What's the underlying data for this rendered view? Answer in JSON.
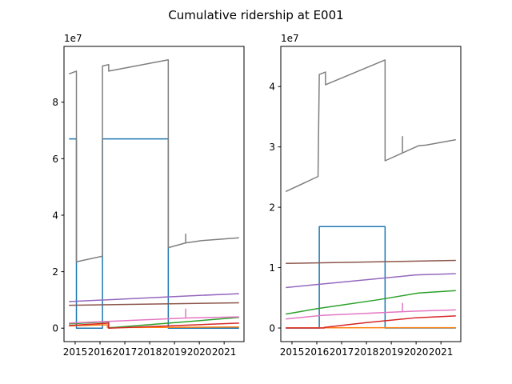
{
  "chart_data": {
    "type": "line",
    "title": "Cumulative ridership at E001",
    "colors": [
      "#1f77b4",
      "#ff7f0e",
      "#2ca02c",
      "#d62728",
      "#9467bd",
      "#8c564b",
      "#e377c2",
      "#7f7f7f"
    ],
    "panels": [
      {
        "xlim": [
          2014.55,
          2021.8
        ],
        "ylim": [
          -4750000,
          99750000
        ],
        "y_offset_label": "1e7",
        "xticks": [
          2015,
          2016,
          2017,
          2018,
          2019,
          2020,
          2021
        ],
        "xtick_labels": [
          "2015",
          "2016",
          "2017",
          "2018",
          "2019",
          "2020",
          "2021"
        ],
        "yticks": [
          0,
          20000000,
          40000000,
          60000000,
          80000000
        ],
        "ytick_labels": [
          "0",
          "2",
          "4",
          "6",
          "8"
        ],
        "series": [
          {
            "values": [
              [
                2014.75,
                67000000
              ],
              [
                2015.05,
                67000000
              ],
              [
                2015.05,
                0
              ],
              [
                2016.1,
                0
              ],
              [
                2016.1,
                67000000
              ],
              [
                2018.75,
                67000000
              ],
              [
                2018.75,
                0
              ],
              [
                2021.6,
                0
              ]
            ]
          },
          {
            "values": [
              [
                2014.75,
                800000
              ],
              [
                2016.3,
                1200000
              ],
              [
                2016.3,
                200000
              ],
              [
                2021.6,
                400000
              ]
            ]
          },
          {
            "values": [
              [
                2014.75,
                1500000
              ],
              [
                2016.35,
                2300000
              ],
              [
                2016.35,
                100000
              ],
              [
                2021.6,
                3800000
              ]
            ]
          },
          {
            "values": [
              [
                2014.75,
                900000
              ],
              [
                2016.35,
                1800000
              ],
              [
                2016.35,
                0
              ],
              [
                2021.6,
                1800000
              ]
            ]
          },
          {
            "values": [
              [
                2014.75,
                9400000
              ],
              [
                2020.0,
                11600000
              ],
              [
                2021.6,
                12200000
              ]
            ]
          },
          {
            "values": [
              [
                2014.75,
                8100000
              ],
              [
                2021.6,
                9000000
              ]
            ]
          },
          {
            "values": [
              [
                2014.75,
                1800000
              ],
              [
                2019.45,
                3600000
              ],
              [
                2019.45,
                6800000
              ],
              [
                2019.45,
                3600000
              ],
              [
                2021.6,
                4000000
              ]
            ]
          },
          {
            "values": [
              [
                2014.75,
                90000000
              ],
              [
                2015.05,
                91000000
              ],
              [
                2015.05,
                23500000
              ],
              [
                2016.1,
                25500000
              ],
              [
                2016.1,
                92800000
              ],
              [
                2016.35,
                93300000
              ],
              [
                2016.35,
                91000000
              ],
              [
                2018.75,
                95000000
              ],
              [
                2018.75,
                28500000
              ],
              [
                2019.45,
                30200000
              ],
              [
                2019.45,
                33300000
              ],
              [
                2019.45,
                30200000
              ],
              [
                2020.1,
                31000000
              ],
              [
                2021.6,
                32000000
              ]
            ]
          }
        ]
      },
      {
        "xlim": [
          2014.55,
          2021.8
        ],
        "ylim": [
          -2250000,
          46650000
        ],
        "y_offset_label": "1e7",
        "xticks": [
          2015,
          2016,
          2017,
          2018,
          2019,
          2020,
          2021
        ],
        "xtick_labels": [
          "2015",
          "2016",
          "2017",
          "2018",
          "2019",
          "2020",
          "2021"
        ],
        "yticks": [
          0,
          10000000,
          20000000,
          30000000,
          40000000
        ],
        "ytick_labels": [
          "0",
          "1",
          "2",
          "3",
          "4"
        ],
        "series": [
          {
            "values": [
              [
                2014.75,
                0
              ],
              [
                2016.1,
                0
              ],
              [
                2016.1,
                16800000
              ],
              [
                2018.75,
                16800000
              ],
              [
                2018.75,
                0
              ],
              [
                2021.6,
                0
              ]
            ]
          },
          {
            "values": [
              [
                2014.75,
                30000
              ],
              [
                2021.6,
                50000
              ]
            ]
          },
          {
            "values": [
              [
                2014.75,
                2300000
              ],
              [
                2016.0,
                3200000
              ],
              [
                2018.5,
                4700000
              ],
              [
                2020.1,
                5800000
              ],
              [
                2021.6,
                6200000
              ]
            ]
          },
          {
            "values": [
              [
                2014.75,
                0
              ],
              [
                2016.3,
                0
              ],
              [
                2016.3,
                100000
              ],
              [
                2018.0,
                900000
              ],
              [
                2020.0,
                1700000
              ],
              [
                2021.6,
                2000000
              ]
            ]
          },
          {
            "values": [
              [
                2014.75,
                6700000
              ],
              [
                2020.0,
                8800000
              ],
              [
                2021.6,
                9000000
              ]
            ]
          },
          {
            "values": [
              [
                2014.75,
                10700000
              ],
              [
                2021.6,
                11200000
              ]
            ]
          },
          {
            "values": [
              [
                2014.75,
                1500000
              ],
              [
                2016.25,
                2100000
              ],
              [
                2019.45,
                2700000
              ],
              [
                2019.45,
                4100000
              ],
              [
                2019.45,
                2700000
              ],
              [
                2020.0,
                2800000
              ],
              [
                2021.6,
                3000000
              ]
            ]
          },
          {
            "values": [
              [
                2014.75,
                22600000
              ],
              [
                2016.05,
                25100000
              ],
              [
                2016.1,
                42000000
              ],
              [
                2016.35,
                42400000
              ],
              [
                2016.35,
                40300000
              ],
              [
                2018.75,
                44400000
              ],
              [
                2018.75,
                27700000
              ],
              [
                2019.45,
                29000000
              ],
              [
                2019.45,
                31700000
              ],
              [
                2019.45,
                29000000
              ],
              [
                2020.1,
                30200000
              ],
              [
                2020.4,
                30300000
              ],
              [
                2021.6,
                31200000
              ]
            ]
          }
        ]
      }
    ]
  }
}
